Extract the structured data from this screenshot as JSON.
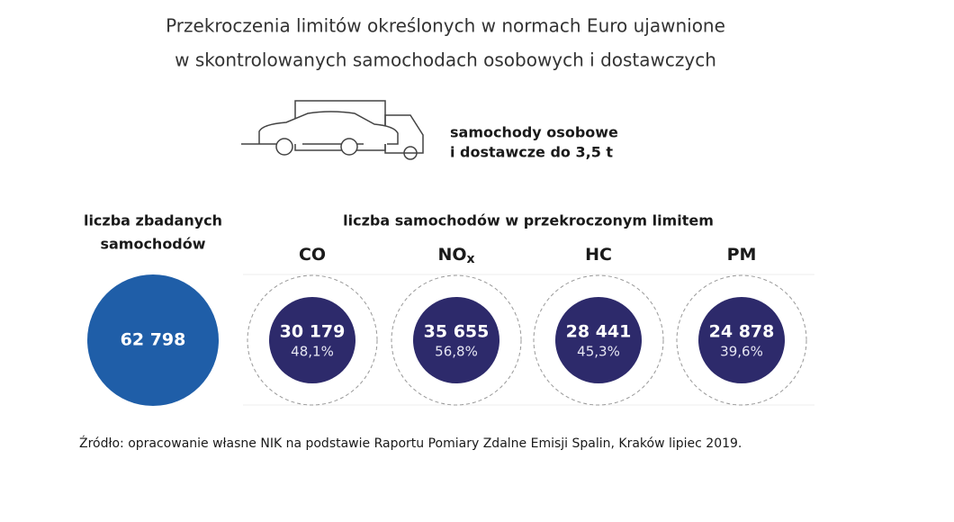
{
  "title": [
    "Przekroczenia limitów określonych w normach Euro ujawnione",
    "w skontrolowanych samochodach osobowych i dostawczych"
  ],
  "vehicle_label": [
    "samochody osobowe",
    "i dostawcze do 3,5 t"
  ],
  "examined": {
    "header": [
      "liczba zbadanych",
      "samochodów"
    ],
    "value": "62 798"
  },
  "exceeded_header": "liczba samochodów w przekroczonym limitem",
  "pollutants": [
    {
      "label": "CO",
      "value": "30 179",
      "share": "48,1%"
    },
    {
      "label": "NO",
      "subscript": "x",
      "value": "35 655",
      "share": "56,8%"
    },
    {
      "label": "HC",
      "value": "28 441",
      "share": "45,3%"
    },
    {
      "label": "PM",
      "value": "24 878",
      "share": "39,6%"
    }
  ],
  "source": "Źródło: opracowanie własne NIK na podstawie Raportu Pomiary Zdalne Emisji Spalin, Kraków lipiec 2019."
}
